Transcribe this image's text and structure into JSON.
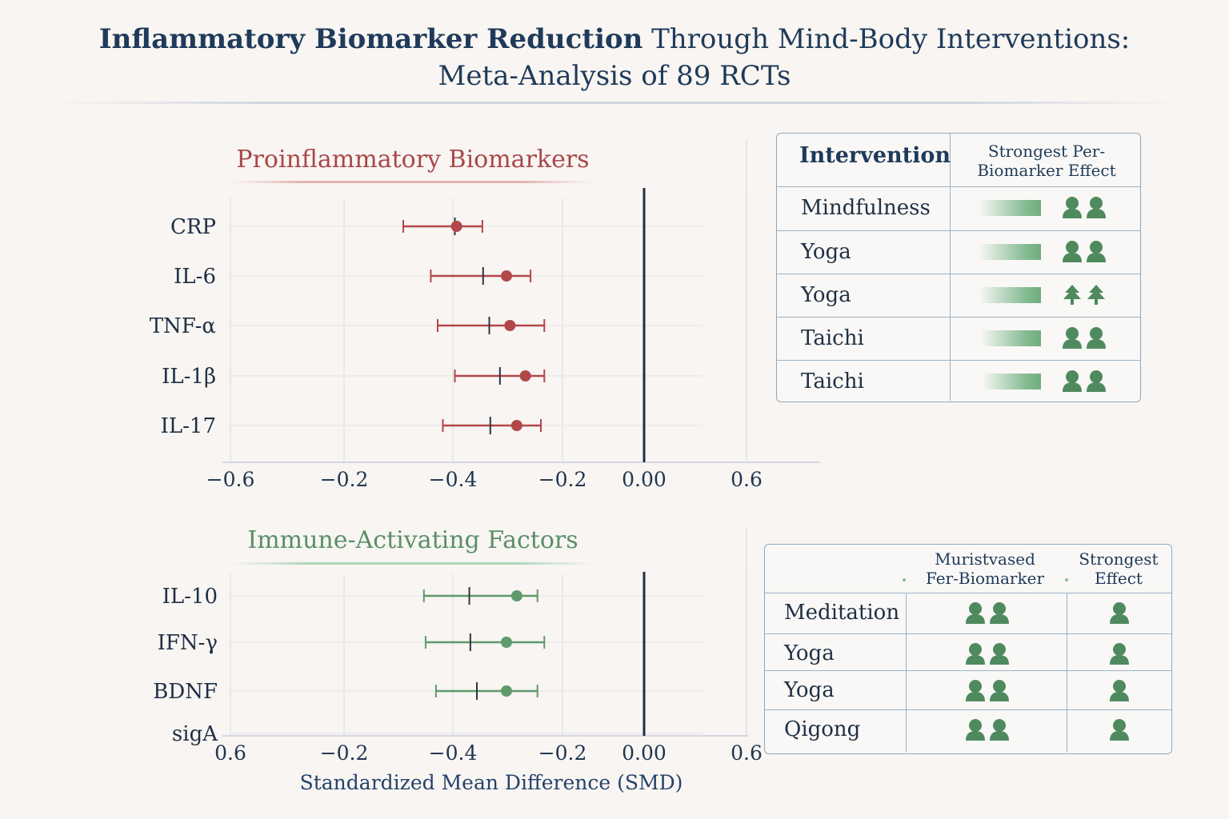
{
  "title": {
    "bold": "Inflammatory Biomarker Reduction",
    "rest": " Through Mind-Body Interventions:",
    "line2": "Meta-Analysis of 89 RCTs"
  },
  "colors": {
    "proinflammatory": "#b2474a",
    "immune": "#5e9a6c",
    "axis_zero": "#1f2f45",
    "icon_green": "#4f8a5e"
  },
  "chart_data": [
    {
      "type": "forest",
      "title": "Proinflammatory Biomarkers",
      "xlabel": "",
      "tick_labels": [
        "−0.6",
        "−0.2",
        "−0.4",
        "−0.2",
        "0.00",
        "0.6"
      ],
      "categories": [
        "CRP",
        "IL-6",
        "TNF-α",
        "IL-1β",
        "IL-17"
      ],
      "estimate": [
        -0.545,
        -0.4,
        -0.39,
        -0.345,
        -0.37
      ],
      "ci_low": [
        -0.7,
        -0.62,
        -0.6,
        -0.55,
        -0.585
      ],
      "ci_high": [
        -0.47,
        -0.33,
        -0.29,
        -0.29,
        -0.3
      ],
      "pooled_marker": [
        -0.55,
        -0.468,
        -0.45,
        -0.419,
        -0.447
      ],
      "grid": true
    },
    {
      "type": "forest",
      "title": "Immune-Activating Factors",
      "xlabel": "Standardized Mean Difference (SMD)",
      "tick_labels": [
        "0.6",
        "−0.2",
        "−0.4",
        "−0.2",
        "0.00",
        "0.6"
      ],
      "categories": [
        "IL-10",
        "IFN-γ",
        "BDNF",
        "sigA"
      ],
      "estimate": [
        -0.37,
        -0.4,
        -0.4,
        null
      ],
      "ci_low": [
        -0.64,
        -0.635,
        -0.605,
        null
      ],
      "ci_high": [
        -0.31,
        -0.29,
        -0.31,
        null
      ],
      "pooled_marker": [
        -0.508,
        -0.505,
        -0.486,
        null
      ],
      "grid": true
    }
  ],
  "table1": {
    "header_intervention": "Intervention",
    "header_effect": "Strongest Per-\nBiomarker Effect",
    "rows": [
      {
        "name": "Mindfulness",
        "effect": 0.78,
        "icon": "person-pair-icon"
      },
      {
        "name": "Yoga",
        "effect": 0.78,
        "icon": "person-pair-icon"
      },
      {
        "name": "Yoga",
        "effect": 0.78,
        "icon": "tree-pair-icon"
      },
      {
        "name": "Taichi",
        "effect": 0.76,
        "icon": "person-pair-icon"
      },
      {
        "name": "Taichi",
        "effect": 0.74,
        "icon": "person-pair-icon"
      }
    ]
  },
  "table2": {
    "header_col2": "Muristvased\nFer-Biomarker",
    "header_col3": "Strongest\nEffect",
    "rows": [
      {
        "name": "Meditation",
        "icon2": "person-pair-icon",
        "icon3": "person-icon"
      },
      {
        "name": "Yoga",
        "icon2": "person-pair-icon",
        "icon3": "person-icon"
      },
      {
        "name": "Yoga",
        "icon2": "person-pair-icon",
        "icon3": "person-icon"
      },
      {
        "name": "Qigong",
        "icon2": "person-pair-icon",
        "icon3": "person-icon"
      }
    ]
  }
}
